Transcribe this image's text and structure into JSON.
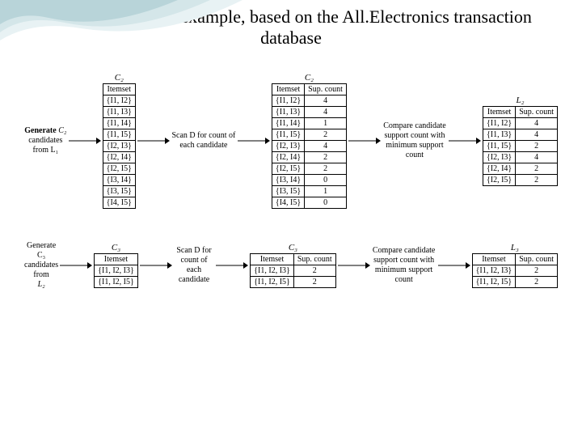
{
  "title": "Apriori algorithm example, based on the All.Electronics transaction database",
  "colors": {
    "wave1": "#b8d4d9",
    "wave2": "#d4e6e9",
    "wave3": "#e8f2f4",
    "text": "#000000",
    "border": "#000000",
    "background": "#ffffff"
  },
  "typography": {
    "title_fontsize": 22,
    "body_fontsize": 10,
    "font_family": "Times New Roman"
  },
  "row1": {
    "gen": {
      "bold": "Generate",
      "line2": "C₂",
      "line3": "candidates from L₁"
    },
    "t1": {
      "caption": "C₂",
      "header": [
        "Itemset"
      ],
      "rows": [
        [
          "{I1, I2}"
        ],
        [
          "{I1, I3}"
        ],
        [
          "{I1, I4}"
        ],
        [
          "{I1, I5}"
        ],
        [
          "{I2, I3}"
        ],
        [
          "{I2, I4}"
        ],
        [
          "{I2, I5}"
        ],
        [
          "{I3, I4}"
        ],
        [
          "{I3, I5}"
        ],
        [
          "{I4, I5}"
        ]
      ]
    },
    "scan": "Scan D for count of each candidate",
    "t2": {
      "caption": "C₂",
      "header": [
        "Itemset",
        "Sup. count"
      ],
      "rows": [
        [
          "{I1, I2}",
          "4"
        ],
        [
          "{I1, I3}",
          "4"
        ],
        [
          "{I1, I4}",
          "1"
        ],
        [
          "{I1, I5}",
          "2"
        ],
        [
          "{I2, I3}",
          "4"
        ],
        [
          "{I2, I4}",
          "2"
        ],
        [
          "{I2, I5}",
          "2"
        ],
        [
          "{I3, I4}",
          "0"
        ],
        [
          "{I3, I5}",
          "1"
        ],
        [
          "{I4, I5}",
          "0"
        ]
      ]
    },
    "compare": "Compare candidate support count with minimum support count",
    "t3": {
      "caption": "L₂",
      "header": [
        "Itemset",
        "Sup. count"
      ],
      "rows": [
        [
          "{I1, I2}",
          "4"
        ],
        [
          "{I1, I3}",
          "4"
        ],
        [
          "{I1, I5}",
          "2"
        ],
        [
          "{I2, I3}",
          "4"
        ],
        [
          "{I2, I4}",
          "2"
        ],
        [
          "{I2, I5}",
          "2"
        ]
      ]
    }
  },
  "row2": {
    "gen": {
      "line1": "Generate C₃",
      "line2": "candidates from",
      "line3": "L₂"
    },
    "t1": {
      "caption": "C₃",
      "header": [
        "Itemset"
      ],
      "rows": [
        [
          "{I1, I2, I3}"
        ],
        [
          "{I1, I2, I5}"
        ]
      ]
    },
    "scan": "Scan D for count of each candidate",
    "t2": {
      "caption": "C₃",
      "header": [
        "Itemset",
        "Sup. count"
      ],
      "rows": [
        [
          "{I1, I2, I3}",
          "2"
        ],
        [
          "{I1, I2, I5}",
          "2"
        ]
      ]
    },
    "compare": "Compare candidate support count with minimum support count",
    "t3": {
      "caption": "L₃",
      "header": [
        "Itemset",
        "Sup. count"
      ],
      "rows": [
        [
          "{I1, I2, I3}",
          "2"
        ],
        [
          "{I1, I2, I5}",
          "2"
        ]
      ]
    }
  }
}
